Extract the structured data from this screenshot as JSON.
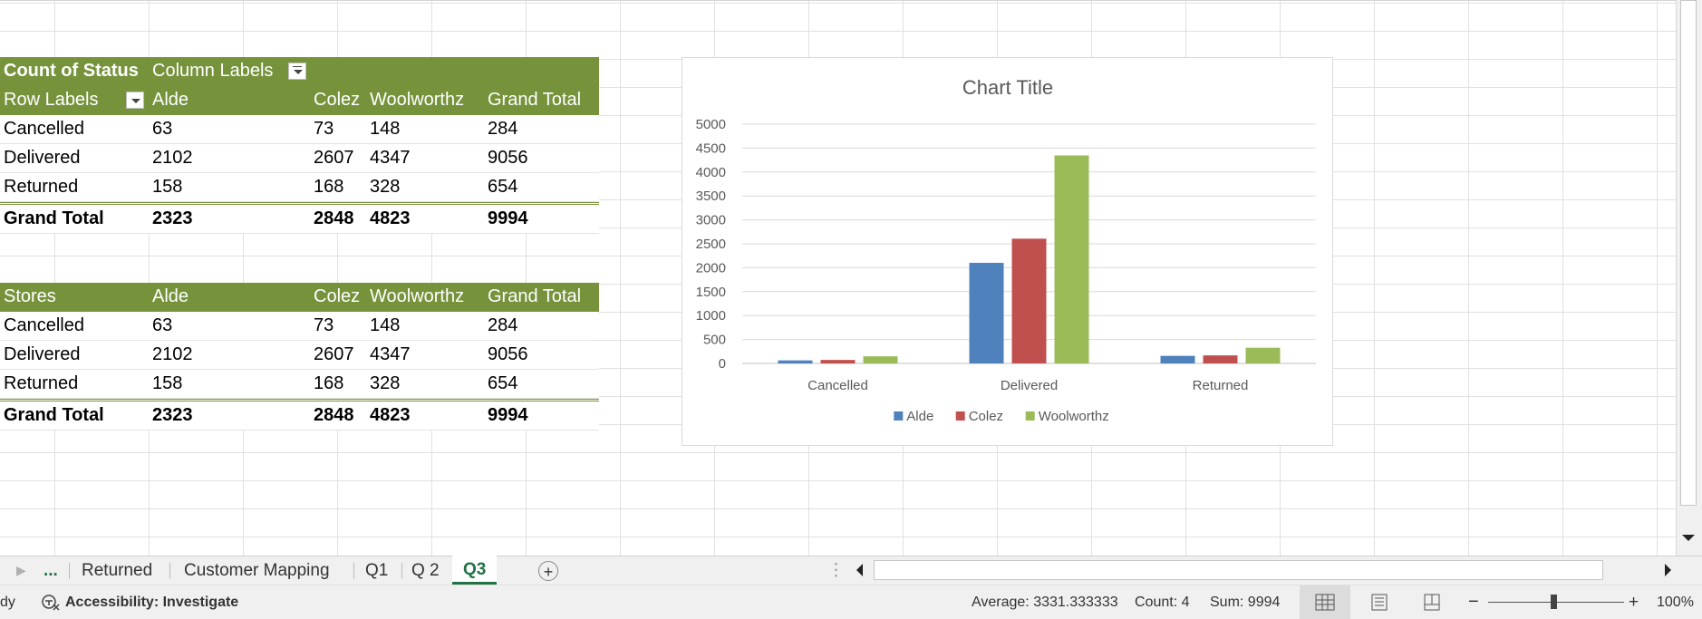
{
  "pivot1": {
    "header1": {
      "col1": "Count of Status",
      "col2": "Column Labels"
    },
    "header2": [
      "Row Labels",
      "Alde",
      "Colez",
      "Woolworthz",
      "Grand Total"
    ],
    "rows": [
      [
        "Cancelled",
        "63",
        "73",
        "148",
        "284"
      ],
      [
        "Delivered",
        "2102",
        "2607",
        "4347",
        "9056"
      ],
      [
        "Returned",
        "158",
        "168",
        "328",
        "654"
      ]
    ],
    "total": [
      "Grand Total",
      "2323",
      "2848",
      "4823",
      "9994"
    ]
  },
  "pivot2": {
    "header": [
      "Stores",
      "Alde",
      "Colez",
      "Woolworthz",
      "Grand Total"
    ],
    "rows": [
      [
        "Cancelled",
        "63",
        "73",
        "148",
        "284"
      ],
      [
        "Delivered",
        "2102",
        "2607",
        "4347",
        "9056"
      ],
      [
        "Returned",
        "158",
        "168",
        "328",
        "654"
      ]
    ],
    "total": [
      "Grand Total",
      "2323",
      "2848",
      "4823",
      "9994"
    ]
  },
  "chart_data": {
    "type": "bar",
    "title": "Chart Title",
    "categories": [
      "Cancelled",
      "Delivered",
      "Returned"
    ],
    "series": [
      {
        "name": "Alde",
        "values": [
          63,
          2102,
          158
        ],
        "color": "#4f81bd"
      },
      {
        "name": "Colez",
        "values": [
          73,
          2607,
          168
        ],
        "color": "#c0504d"
      },
      {
        "name": "Woolworthz",
        "values": [
          148,
          4347,
          328
        ],
        "color": "#9bbb59"
      }
    ],
    "ylim": [
      0,
      5000
    ],
    "yticks": [
      "5000",
      "4500",
      "4000",
      "3500",
      "3000",
      "2500",
      "2000",
      "1500",
      "1000",
      "500",
      "0"
    ],
    "grid": true,
    "legend": "bottom"
  },
  "tabs": {
    "ellipsis": "...",
    "items": [
      "Returned",
      "Customer Mapping",
      "Q1",
      "Q 2",
      "Q3"
    ],
    "active": "Q3"
  },
  "status": {
    "mode": "dy",
    "accessibility": "Accessibility: Investigate",
    "average": "Average: 3331.333333",
    "count": "Count: 4",
    "sum": "Sum: 9994",
    "zoom": "100%",
    "zoom_minus": "−",
    "zoom_plus": "+"
  }
}
